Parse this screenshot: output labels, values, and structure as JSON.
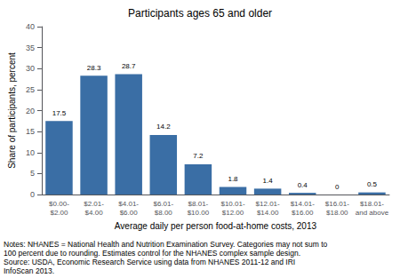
{
  "chart_data": {
    "type": "bar",
    "title": "Participants ages 65 and older",
    "ylabel": "Share of participants, percent",
    "xlabel": "Average daily per person food-at-home costs, 2013",
    "categories": [
      "$0.00-\n$2.00",
      "$2.01-\n$4.00",
      "$4.01-\n$6.00",
      "$6.01-\n$8.00",
      "$8.01-\n$10.00",
      "$10.01-\n$12.00",
      "$12.01-\n$14.00",
      "$14.01-\n$16.00",
      "$16.01-\n$18.00",
      "$18.01-\nand above"
    ],
    "values": [
      17.5,
      28.3,
      28.7,
      14.2,
      7.2,
      1.8,
      1.4,
      0.4,
      0,
      0.5
    ],
    "color": "#3A6EA5",
    "ylim": [
      0,
      40
    ],
    "yticks": [
      0,
      5,
      10,
      15,
      20,
      25,
      30,
      35,
      40
    ],
    "grid": false,
    "data_labels": true,
    "annotations": [
      "Notes: NHANES = National Health and Nutrition Examination Survey. Categories may not sum to",
      "100 percent due to rounding. Estimates control for the NHANES complex sample design.",
      "Source: USDA, Economic Research Service using data from NHANES 2011-12 and IRI",
      "InfoScan 2013."
    ]
  }
}
